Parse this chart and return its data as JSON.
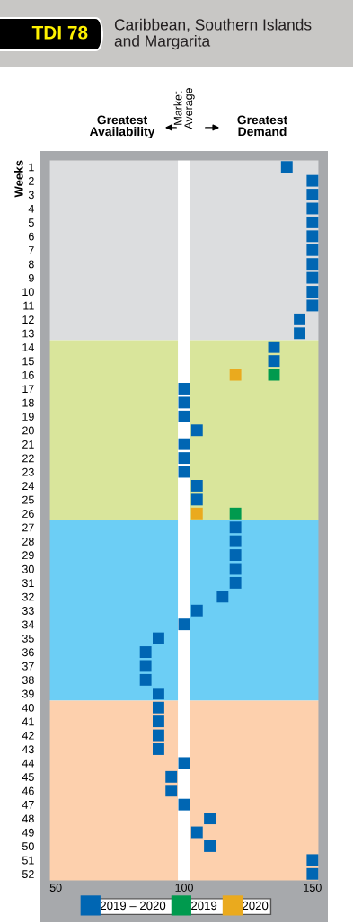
{
  "chart_data": {
    "type": "scatter",
    "orientation": "horizontal",
    "subtitle": "TDI 78",
    "title": "Caribbean, Southern Islands\nand Margarita",
    "ylabel": "Weeks",
    "categories": [
      "1",
      "2",
      "3",
      "4",
      "5",
      "6",
      "7",
      "8",
      "9",
      "10",
      "11",
      "12",
      "13",
      "14",
      "15",
      "16",
      "17",
      "18",
      "19",
      "20",
      "21",
      "22",
      "23",
      "24",
      "25",
      "26",
      "27",
      "28",
      "29",
      "30",
      "31",
      "32",
      "33",
      "34",
      "35",
      "36",
      "37",
      "38",
      "39",
      "40",
      "41",
      "42",
      "43",
      "44",
      "45",
      "46",
      "47",
      "48",
      "49",
      "50",
      "51",
      "52"
    ],
    "series": [
      {
        "name": "2019 – 2020",
        "color": "#0066b3",
        "values": [
          140,
          150,
          150,
          150,
          150,
          150,
          150,
          150,
          150,
          150,
          150,
          145,
          145,
          135,
          135,
          null,
          100,
          100,
          100,
          105,
          100,
          100,
          100,
          105,
          105,
          null,
          120,
          120,
          120,
          120,
          120,
          115,
          105,
          100,
          90,
          85,
          85,
          85,
          90,
          90,
          90,
          90,
          90,
          100,
          95,
          95,
          100,
          110,
          105,
          110,
          150,
          150
        ]
      },
      {
        "name": "2019",
        "color": "#009a4e",
        "values": [
          null,
          null,
          null,
          null,
          null,
          null,
          null,
          null,
          null,
          null,
          null,
          null,
          null,
          null,
          null,
          135,
          null,
          null,
          null,
          null,
          null,
          null,
          null,
          null,
          null,
          120,
          null,
          null,
          null,
          null,
          null,
          null,
          null,
          null,
          null,
          null,
          null,
          null,
          null,
          null,
          null,
          null,
          null,
          null,
          null,
          null,
          null,
          null,
          null,
          null,
          null,
          null
        ]
      },
      {
        "name": "2020",
        "color": "#eaaa1e",
        "values": [
          null,
          null,
          null,
          null,
          null,
          null,
          null,
          null,
          null,
          null,
          null,
          null,
          null,
          null,
          null,
          120,
          null,
          null,
          null,
          null,
          null,
          null,
          null,
          null,
          null,
          105,
          null,
          null,
          null,
          null,
          null,
          null,
          null,
          null,
          null,
          null,
          null,
          null,
          null,
          null,
          null,
          null,
          null,
          null,
          null,
          null,
          null,
          null,
          null,
          null,
          null,
          null
        ]
      }
    ],
    "marker": "square",
    "xlim": [
      47.5,
      152.5
    ],
    "xticks": [
      50,
      100,
      150
    ],
    "bands": [
      {
        "axis": "y",
        "from": "1",
        "to": "13",
        "color": "#dcdddf"
      },
      {
        "axis": "y",
        "from": "14",
        "to": "26",
        "color": "#d9e59b"
      },
      {
        "axis": "y",
        "from": "27",
        "to": "39",
        "color": "#6ccef5"
      },
      {
        "axis": "y",
        "from": "40",
        "to": "52",
        "color": "#fdd0ad"
      }
    ],
    "ref_lines": [
      {
        "axis": "x",
        "value": 100,
        "label": "Market\nAverage",
        "color": "#ffffff"
      }
    ],
    "annotations": [
      "Greatest\nAvailability",
      "Greatest\nDemand"
    ],
    "legend": "bottom"
  }
}
